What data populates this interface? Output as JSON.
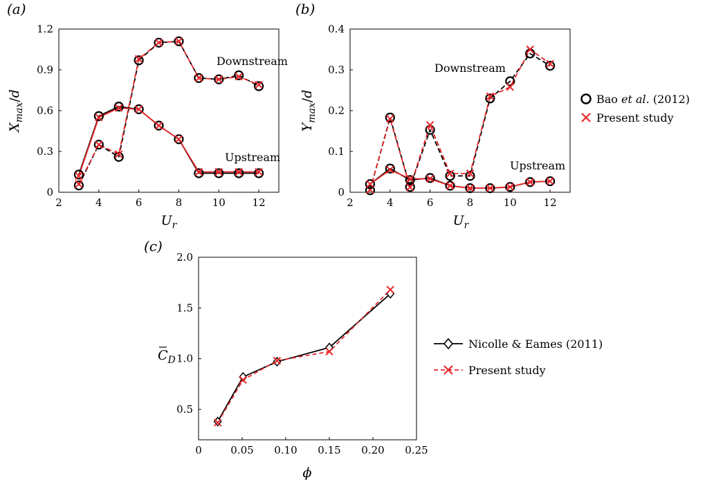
{
  "chart_data": [
    {
      "type": "line",
      "panel_label": "(a)",
      "xlabel": "U_r",
      "ylabel": "X_max/d",
      "xlim": [
        2,
        13
      ],
      "ylim": [
        0,
        1.2
      ],
      "xticks": [
        "2",
        "4",
        "6",
        "8",
        "10",
        "12"
      ],
      "yticks": [
        "0",
        "0.3",
        "0.6",
        "0.9",
        "1.2"
      ],
      "x": [
        3,
        4,
        5,
        6,
        7,
        8,
        9,
        10,
        11,
        12
      ],
      "annotations": [
        "Downstream",
        "Upstream"
      ],
      "series": [
        {
          "group": "Downstream",
          "source": "Bao et al. (2012)",
          "values": [
            0.05,
            0.35,
            0.26,
            0.97,
            1.1,
            1.11,
            0.84,
            0.83,
            0.86,
            0.78
          ]
        },
        {
          "group": "Downstream",
          "source": "Present study",
          "values": [
            0.06,
            0.35,
            0.28,
            0.98,
            1.1,
            1.11,
            0.84,
            0.83,
            0.85,
            0.79
          ]
        },
        {
          "group": "Upstream",
          "source": "Bao et al. (2012)",
          "values": [
            0.13,
            0.56,
            0.63,
            0.61,
            0.49,
            0.39,
            0.14,
            0.14,
            0.14,
            0.14
          ]
        },
        {
          "group": "Upstream",
          "source": "Present study",
          "values": [
            0.12,
            0.55,
            0.62,
            0.61,
            0.49,
            0.39,
            0.15,
            0.15,
            0.15,
            0.15
          ]
        }
      ]
    },
    {
      "type": "line",
      "panel_label": "(b)",
      "xlabel": "U_r",
      "ylabel": "Y_max/d",
      "xlim": [
        2,
        13
      ],
      "ylim": [
        0,
        0.4
      ],
      "xticks": [
        "2",
        "4",
        "6",
        "8",
        "10",
        "12"
      ],
      "yticks": [
        "0",
        "0.1",
        "0.2",
        "0.3",
        "0.4"
      ],
      "x": [
        3,
        4,
        5,
        6,
        7,
        8,
        9,
        10,
        11,
        12
      ],
      "annotations": [
        "Downstream",
        "Upstream"
      ],
      "series": [
        {
          "group": "Downstream",
          "source": "Bao et al. (2012)",
          "values": [
            0.005,
            0.183,
            0.013,
            0.153,
            0.04,
            0.04,
            0.23,
            0.272,
            0.34,
            0.31
          ]
        },
        {
          "group": "Downstream",
          "source": "Present study",
          "values": [
            0.006,
            0.18,
            0.012,
            0.165,
            0.046,
            0.046,
            0.235,
            0.258,
            0.35,
            0.315
          ]
        },
        {
          "group": "Upstream",
          "source": "Bao et al. (2012)",
          "values": [
            0.02,
            0.058,
            0.03,
            0.035,
            0.016,
            0.01,
            0.01,
            0.013,
            0.025,
            0.027
          ]
        },
        {
          "group": "Upstream",
          "source": "Present study",
          "values": [
            0.02,
            0.055,
            0.033,
            0.033,
            0.016,
            0.01,
            0.01,
            0.013,
            0.025,
            0.027
          ]
        }
      ]
    },
    {
      "type": "line",
      "panel_label": "(c)",
      "xlabel": "ϕ",
      "ylabel": "C̄_D",
      "xlim": [
        0,
        0.25
      ],
      "ylim": [
        0.2,
        2.0
      ],
      "xticks": [
        "0",
        "0.05",
        "0.10",
        "0.15",
        "0.20",
        "0.25"
      ],
      "yticks": [
        "0.5",
        "1.0",
        "1.5",
        "2.0"
      ],
      "x": [
        0.022,
        0.051,
        0.09,
        0.15,
        0.22
      ],
      "series": [
        {
          "name": "Nicolle & Eames (2011)",
          "values": [
            0.38,
            0.82,
            0.97,
            1.11,
            1.64
          ]
        },
        {
          "name": "Present study",
          "values": [
            0.37,
            0.79,
            0.98,
            1.07,
            1.68
          ]
        }
      ]
    }
  ],
  "legend_ab": {
    "item1_label_pre": "Bao ",
    "item1_label_em": "et al.",
    "item1_label_post": " (2012)",
    "item2_label": "Present study"
  },
  "legend_c": {
    "item1_label": "Nicolle & Eames (2011)",
    "item2_label": "Present study"
  },
  "colors": {
    "reference": "#000000",
    "present": "#e8262a"
  }
}
